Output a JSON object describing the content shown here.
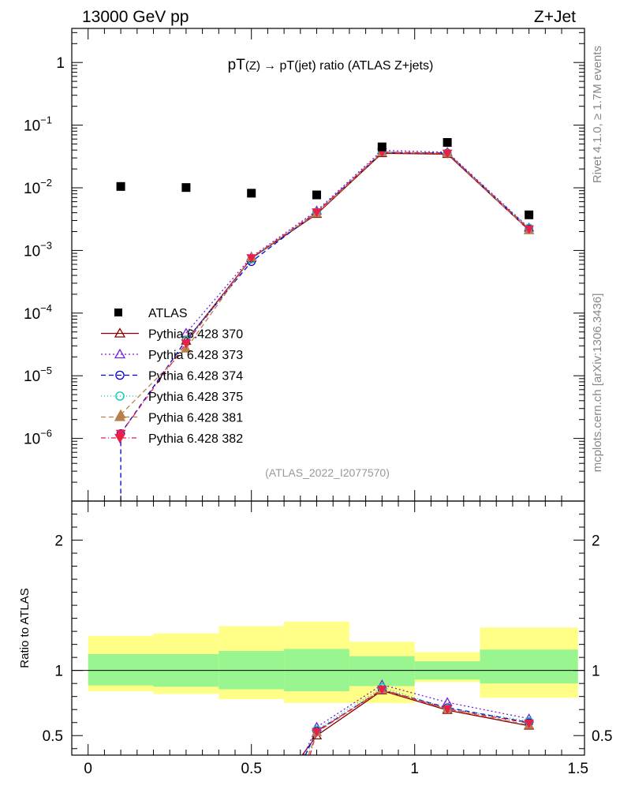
{
  "header": {
    "energy": "13000 GeV pp",
    "process": "Z+Jet"
  },
  "side_labels": {
    "rivet": "Rivet 4.1.0, ≥ 1.7M events",
    "mcplots": "mcplots.cern.ch [arXiv:1306.3436]"
  },
  "chart_data": {
    "type": "scatter",
    "title": "pT(Z) → pT(jet) ratio (ATLAS Z+jets)",
    "title_parts": {
      "a": "pT",
      "b": "(Z)",
      "c": "→ pT(jet) ratio (ATLAS Z+jets)"
    },
    "analysis": "(ATLAS_2022_I2077570)",
    "xlim": [
      -0.05,
      1.52
    ],
    "xticks": [
      0,
      0.5,
      1,
      1.5
    ],
    "xtick_labels": [
      "0",
      "0.5",
      "1",
      "1.5"
    ],
    "main": {
      "yscale": "log",
      "ylim": [
        1e-07,
        3.5
      ],
      "ytick_labels": [
        {
          "v": 1,
          "m": "1",
          "e": ""
        },
        {
          "v": 0.1,
          "m": "10",
          "e": "−1"
        },
        {
          "v": 0.01,
          "m": "10",
          "e": "−2"
        },
        {
          "v": 0.001,
          "m": "10",
          "e": "−3"
        },
        {
          "v": 0.0001,
          "m": "10",
          "e": "−4"
        },
        {
          "v": 1e-05,
          "m": "10",
          "e": "−5"
        },
        {
          "v": 1e-06,
          "m": "10",
          "e": "−6"
        }
      ]
    },
    "ratio": {
      "ylabel": "Ratio to ATLAS",
      "ylim": [
        0.35,
        2.3
      ],
      "yticks": [
        0.5,
        1,
        2
      ],
      "ytick_labels": [
        "0.5",
        "1",
        "2"
      ],
      "bands": [
        {
          "x0": 0.0,
          "x1": 0.2,
          "green": [
            0.885,
            1.125
          ],
          "yellow": [
            0.84,
            1.265
          ]
        },
        {
          "x0": 0.2,
          "x1": 0.4,
          "green": [
            0.875,
            1.125
          ],
          "yellow": [
            0.82,
            1.285
          ]
        },
        {
          "x0": 0.4,
          "x1": 0.6,
          "green": [
            0.855,
            1.15
          ],
          "yellow": [
            0.78,
            1.34
          ]
        },
        {
          "x0": 0.6,
          "x1": 0.8,
          "green": [
            0.84,
            1.165
          ],
          "yellow": [
            0.75,
            1.375
          ]
        },
        {
          "x0": 0.8,
          "x1": 1.0,
          "green": [
            0.88,
            1.11
          ],
          "yellow": [
            0.75,
            1.22
          ]
        },
        {
          "x0": 1.0,
          "x1": 1.2,
          "green": [
            0.93,
            1.07
          ],
          "yellow": [
            0.91,
            1.14
          ]
        },
        {
          "x0": 1.2,
          "x1": 1.5,
          "green": [
            0.9,
            1.16
          ],
          "yellow": [
            0.79,
            1.33
          ]
        }
      ]
    },
    "x": [
      0.1,
      0.3,
      0.5,
      0.7,
      0.9,
      1.1,
      1.35
    ],
    "data_series": {
      "name": "ATLAS",
      "values": [
        0.0105,
        0.0101,
        0.0082,
        0.0077,
        0.045,
        0.053,
        0.0037
      ],
      "color": "#000000"
    },
    "series": [
      {
        "name": "Pythia 6.428 370",
        "color": "#8b0000",
        "marker": "triangle-open",
        "dash": "",
        "values": [
          null,
          3.6e-05,
          0.00075,
          0.0038,
          0.0355,
          0.0345,
          0.0021
        ],
        "ratio": [
          null,
          null,
          null,
          0.5,
          0.845,
          0.695,
          0.575
        ]
      },
      {
        "name": "Pythia 6.428 373",
        "color": "#7a1fd1",
        "marker": "triangle-open",
        "dash": "2,3",
        "values": [
          null,
          4.8e-05,
          0.00079,
          0.0043,
          0.0395,
          0.037,
          0.0023
        ],
        "ratio": [
          null,
          null,
          null,
          0.565,
          0.89,
          0.755,
          0.63
        ]
      },
      {
        "name": "Pythia 6.428 374",
        "color": "#0000cc",
        "marker": "circle-open",
        "dash": "6,4",
        "values": [
          1.2e-06,
          3.7e-05,
          0.00066,
          0.0041,
          0.0365,
          0.036,
          0.0022
        ],
        "ratio": [
          null,
          null,
          null,
          0.535,
          0.85,
          0.715,
          0.6
        ]
      },
      {
        "name": "Pythia 6.428 375",
        "color": "#00c8b4",
        "marker": "circle-open",
        "dash": "1,3",
        "values": [
          null,
          3.7e-05,
          0.00072,
          0.0041,
          0.0375,
          0.0355,
          0.0023
        ],
        "ratio": [
          null,
          null,
          null,
          0.545,
          0.87,
          0.71,
          0.61
        ]
      },
      {
        "name": "Pythia 6.428 381",
        "color": "#b8804a",
        "marker": "triangle-full",
        "dash": "6,4",
        "values": [
          2.4e-06,
          2.7e-05,
          0.00077,
          0.0039,
          0.0365,
          0.0355,
          0.0021
        ],
        "ratio": [
          null,
          null,
          null,
          0.525,
          0.85,
          0.705,
          0.58
        ]
      },
      {
        "name": "Pythia 6.428 382",
        "color": "#e8204a",
        "marker": "triangle-down-full",
        "dash": "6,3,1,3",
        "values": [
          1.2e-06,
          3.3e-05,
          0.00076,
          0.0041,
          0.0372,
          0.0355,
          0.0022
        ],
        "ratio": [
          null,
          null,
          null,
          0.53,
          0.855,
          0.705,
          0.595
        ]
      }
    ]
  }
}
